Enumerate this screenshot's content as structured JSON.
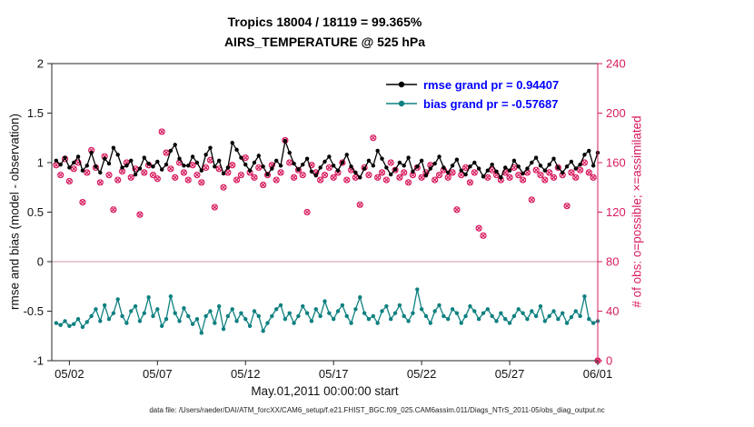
{
  "figure": {
    "title_line1": "Tropics 18004 / 18119 = 99.365%",
    "title_line2": "AIRS_TEMPERATURE @ 525 hPa",
    "xlabel": "May.01,2011 00:00:00 start",
    "ylabel_left": "rmse and bias (model - observation)",
    "ylabel_right": "# of obs: o=possible; ×=assimilated",
    "caption": "data file: /Users/raeder/DAI/ATM_forcXX/CAM6_setup/f.e21.FHIST_BGC.f09_025.CAM6assim.011/Diags_NTrS_2011-05/obs_diag_output.nc",
    "legend": [
      {
        "label": "rmse grand pr = 0.94407",
        "series": "rmse"
      },
      {
        "label": "bias grand pr = -0.57687",
        "series": "bias"
      }
    ]
  },
  "colors": {
    "rmse": "#000000",
    "bias": "#0f8080",
    "obs": "#d81b60",
    "legend_text": "#0000ff",
    "zero_line": "#ddb9c4",
    "axis": "#262626"
  },
  "chart_data": {
    "type": "line",
    "title": "Tropics 18004 / 18119 = 99.365% | AIRS_TEMPERATURE @ 525 hPa",
    "x_axis": {
      "range_days": [
        1,
        32
      ],
      "tick_days": [
        2,
        7,
        12,
        17,
        22,
        27,
        32
      ],
      "tick_labels": [
        "05/02",
        "05/07",
        "05/12",
        "05/17",
        "05/22",
        "05/27",
        "06/01"
      ],
      "label": "May.01,2011 00:00:00 start"
    },
    "y_left": {
      "label": "rmse and bias (model - observation)",
      "range": [
        -1,
        2
      ],
      "ticks": [
        -1,
        -0.5,
        0,
        0.5,
        1,
        1.5,
        2
      ],
      "tick_labels": [
        "-1",
        "-0.5",
        "0",
        "0.5",
        "1",
        "1.5",
        "2"
      ]
    },
    "y_right": {
      "label": "# of obs: o=possible; x=assimilated",
      "range": [
        0,
        240
      ],
      "ticks": [
        0,
        40,
        80,
        120,
        160,
        200,
        240
      ],
      "tick_labels": [
        "0",
        "40",
        "80",
        "120",
        "160",
        "200",
        "240"
      ]
    },
    "time": {
      "start_day": 1.25,
      "step_day": 0.25,
      "n": 124
    },
    "series": [
      {
        "name": "rmse",
        "axis": "left",
        "grand_pr": 0.94407,
        "values": [
          1.02,
          0.98,
          1.05,
          0.95,
          1.0,
          1.06,
          0.92,
          0.97,
          1.1,
          0.96,
          0.9,
          1.04,
          0.99,
          1.15,
          1.08,
          0.95,
          0.97,
          1.02,
          0.88,
          0.94,
          1.05,
          0.99,
          0.96,
          1.01,
          0.93,
          0.98,
          1.12,
          1.18,
          1.04,
          0.97,
          0.97,
          1.06,
          1.0,
          0.92,
          1.08,
          1.15,
          0.96,
          1.02,
          0.89,
          0.95,
          1.2,
          1.13,
          1.05,
          0.98,
          0.92,
          1.0,
          1.07,
          0.96,
          0.88,
          0.94,
          1.02,
          0.97,
          1.22,
          1.1,
          0.99,
          0.93,
          0.98,
          1.04,
          0.91,
          0.87,
          0.95,
          1.01,
          1.06,
          0.97,
          0.92,
          1.0,
          1.08,
          0.96,
          0.9,
          0.85,
          0.94,
          1.02,
          0.97,
          1.12,
          1.04,
          0.95,
          0.88,
          0.93,
          1.0,
          0.97,
          1.05,
          0.91,
          0.96,
          1.02,
          0.87,
          0.94,
          0.99,
          1.06,
          0.95,
          0.9,
          0.97,
          1.03,
          0.92,
          0.88,
          0.96,
          1.0,
          0.94,
          0.86,
          0.92,
          0.98,
          0.91,
          0.85,
          0.95,
          0.92,
          1.02,
          0.96,
          0.89,
          0.94,
          1.0,
          1.05,
          0.97,
          0.92,
          0.98,
          1.04,
          0.95,
          0.9,
          0.96,
          1.01,
          0.94,
          0.98,
          1.08,
          1.12,
          0.97,
          1.1
        ]
      },
      {
        "name": "bias",
        "axis": "left",
        "grand_pr": -0.57687,
        "values": [
          -0.62,
          -0.64,
          -0.6,
          -0.65,
          -0.63,
          -0.58,
          -0.66,
          -0.61,
          -0.55,
          -0.48,
          -0.6,
          -0.44,
          -0.58,
          -0.52,
          -0.38,
          -0.55,
          -0.62,
          -0.5,
          -0.45,
          -0.6,
          -0.52,
          -0.36,
          -0.55,
          -0.48,
          -0.65,
          -0.58,
          -0.35,
          -0.52,
          -0.6,
          -0.47,
          -0.55,
          -0.63,
          -0.58,
          -0.72,
          -0.55,
          -0.5,
          -0.62,
          -0.45,
          -0.68,
          -0.55,
          -0.48,
          -0.6,
          -0.52,
          -0.58,
          -0.65,
          -0.5,
          -0.55,
          -0.7,
          -0.62,
          -0.55,
          -0.48,
          -0.44,
          -0.58,
          -0.52,
          -0.62,
          -0.55,
          -0.45,
          -0.52,
          -0.6,
          -0.48,
          -0.55,
          -0.4,
          -0.52,
          -0.58,
          -0.5,
          -0.44,
          -0.55,
          -0.62,
          -0.48,
          -0.36,
          -0.52,
          -0.58,
          -0.55,
          -0.62,
          -0.5,
          -0.45,
          -0.58,
          -0.52,
          -0.44,
          -0.55,
          -0.6,
          -0.52,
          -0.28,
          -0.48,
          -0.55,
          -0.62,
          -0.5,
          -0.44,
          -0.55,
          -0.58,
          -0.48,
          -0.52,
          -0.62,
          -0.55,
          -0.45,
          -0.5,
          -0.58,
          -0.52,
          -0.48,
          -0.55,
          -0.6,
          -0.52,
          -0.58,
          -0.62,
          -0.55,
          -0.48,
          -0.52,
          -0.58,
          -0.5,
          -0.55,
          -0.45,
          -0.6,
          -0.55,
          -0.5,
          -0.58,
          -0.52,
          -0.62,
          -0.56,
          -0.5,
          -0.55,
          -0.35,
          -0.58,
          -0.62,
          -0.6
        ]
      },
      {
        "name": "obs",
        "axis": "right",
        "marker": "o+x",
        "values": [
          158,
          150,
          163,
          145,
          155,
          160,
          128,
          152,
          170,
          156,
          144,
          165,
          150,
          122,
          146,
          153,
          160,
          148,
          155,
          118,
          152,
          158,
          150,
          147,
          185,
          168,
          155,
          148,
          160,
          152,
          146,
          158,
          150,
          144,
          156,
          162,
          124,
          155,
          140,
          152,
          158,
          146,
          150,
          164,
          152,
          148,
          156,
          142,
          150,
          158,
          146,
          152,
          178,
          160,
          148,
          154,
          150,
          120,
          158,
          152,
          146,
          150,
          156,
          148,
          152,
          160,
          146,
          154,
          148,
          126,
          156,
          150,
          180,
          148,
          152,
          146,
          160,
          154,
          148,
          152,
          144,
          150,
          156,
          148,
          152,
          158,
          146,
          150,
          154,
          148,
          152,
          122,
          150,
          156,
          144,
          152,
          107,
          101,
          148,
          154,
          150,
          146,
          152,
          148,
          156,
          150,
          146,
          152,
          130,
          154,
          150,
          146,
          152,
          148,
          156,
          150,
          125,
          152,
          148,
          154,
          160,
          152,
          148,
          0
        ]
      }
    ]
  }
}
